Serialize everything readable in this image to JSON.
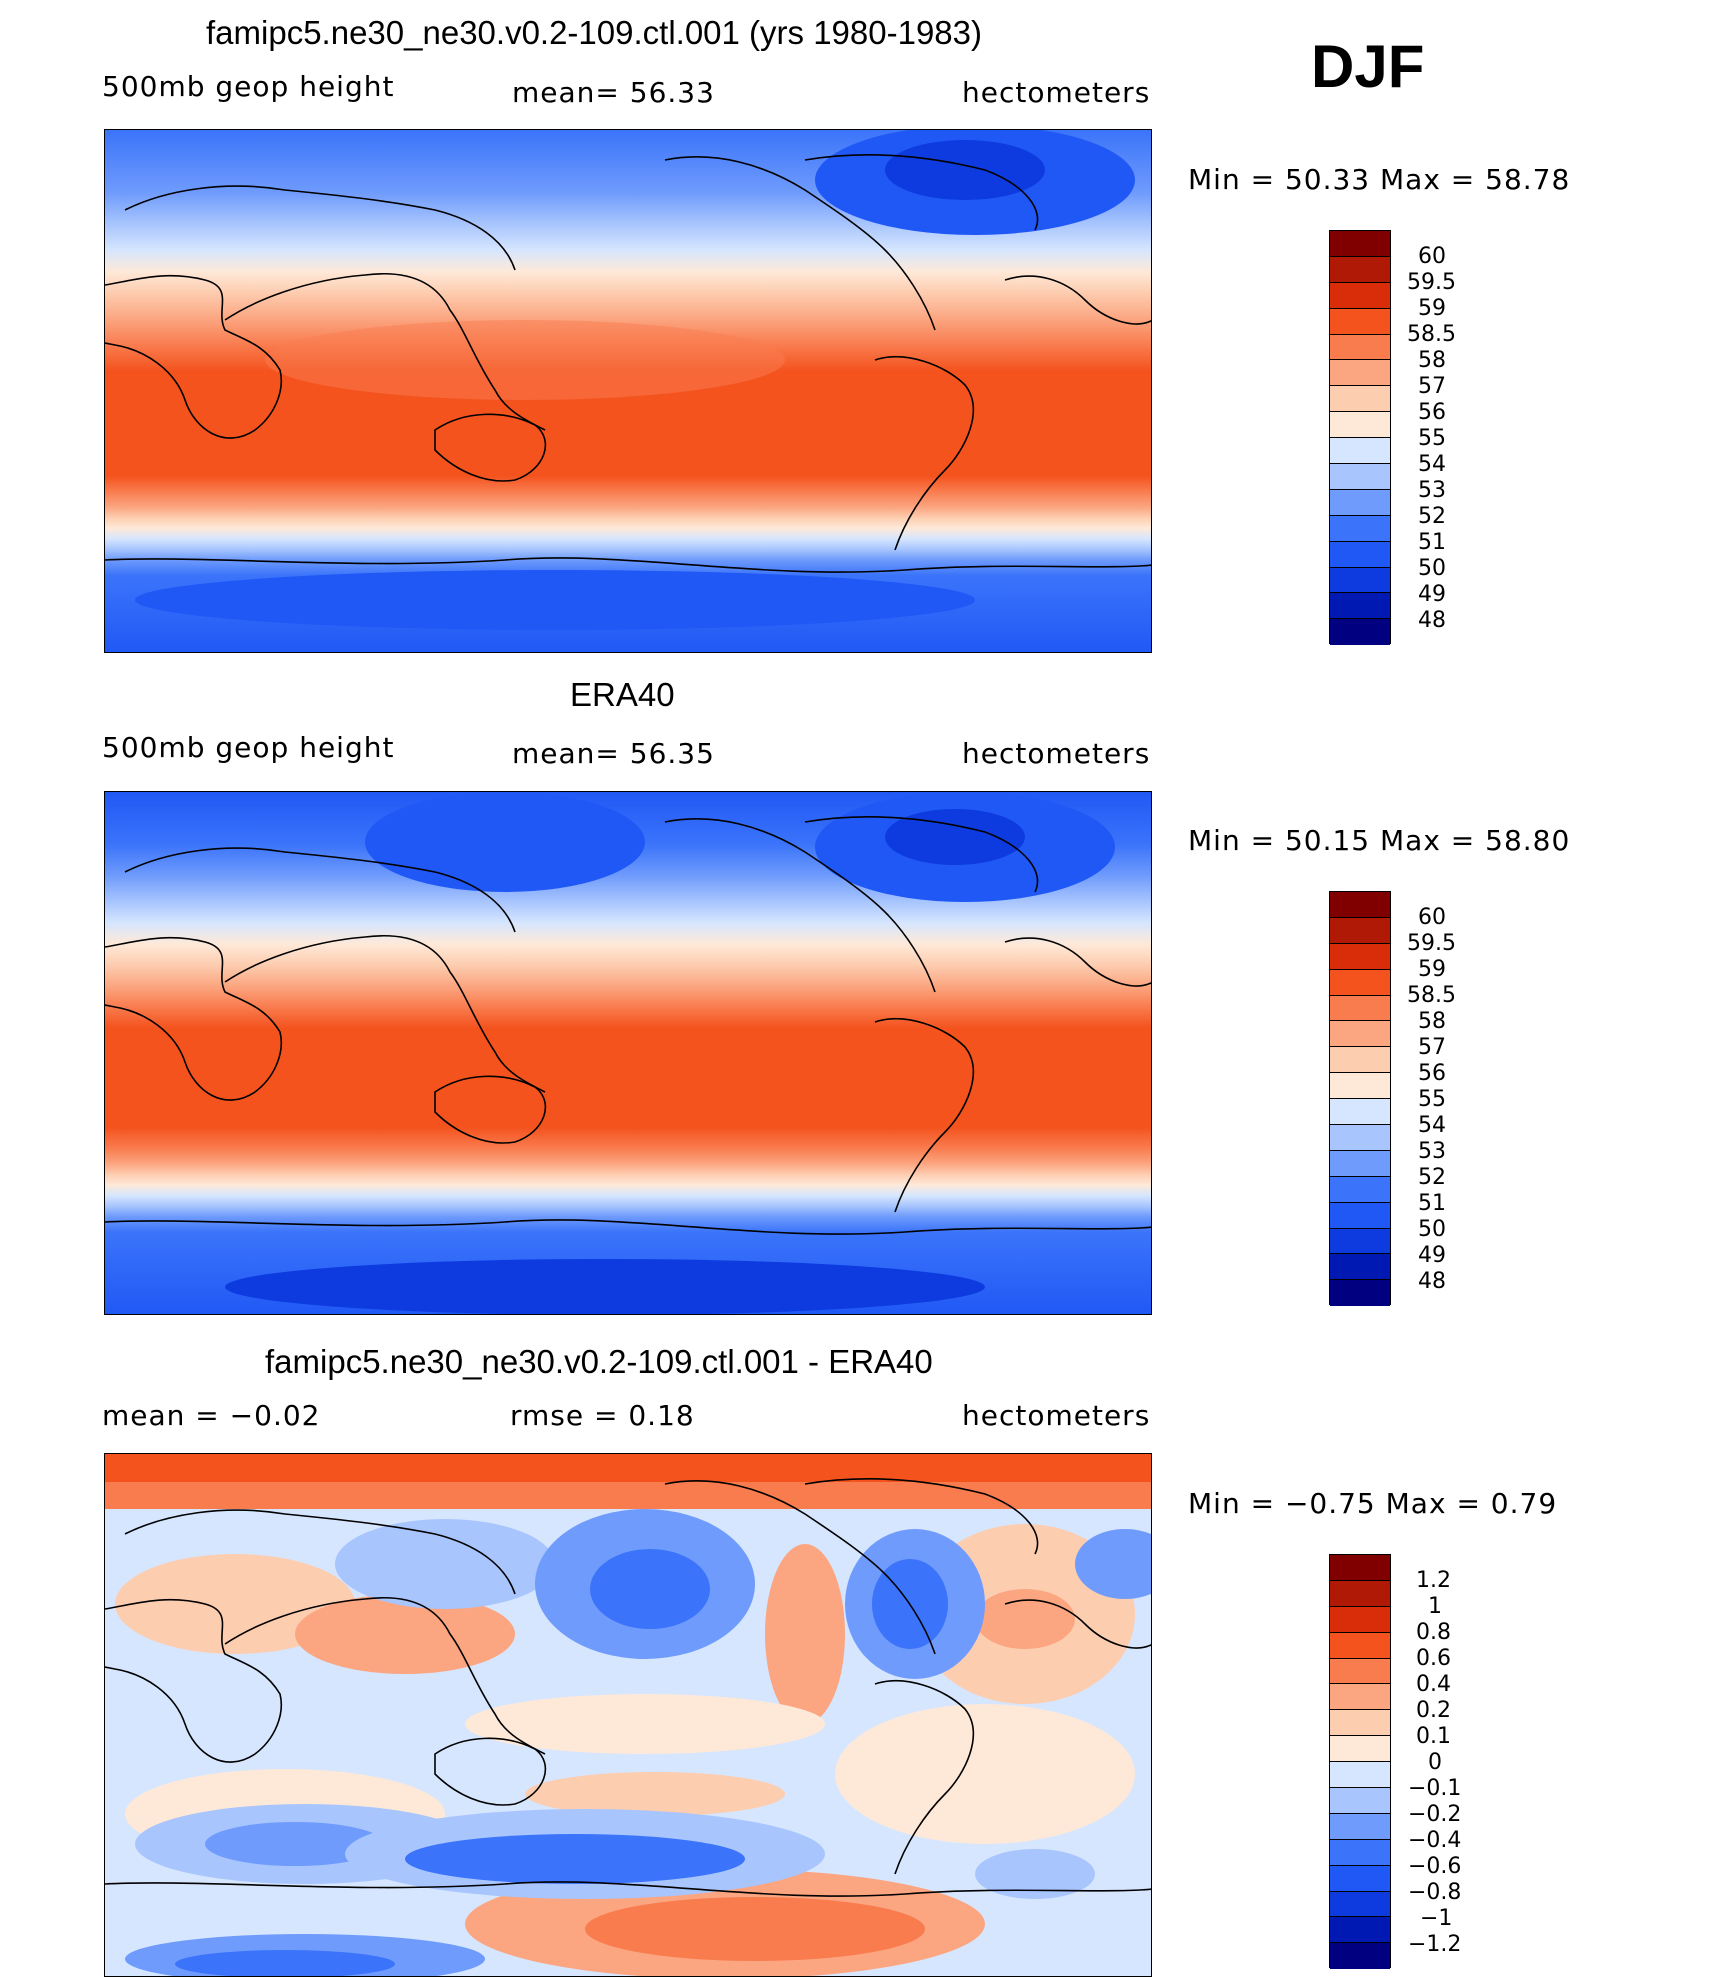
{
  "header": {
    "season": "DJF"
  },
  "colors": {
    "abs_scale": [
      "#000080",
      "#0019b3",
      "#0d3be0",
      "#2058f5",
      "#3b74fa",
      "#6f9bfc",
      "#a8c5fd",
      "#d6e6fe",
      "#fee9d9",
      "#fdcdb0",
      "#fba681",
      "#f97c4f",
      "#f4531e",
      "#d92d0a",
      "#b01905",
      "#800000"
    ],
    "diff_scale": [
      "#000080",
      "#0019b3",
      "#0d3be0",
      "#2058f5",
      "#3b74fa",
      "#6f9bfc",
      "#a8c5fd",
      "#d6e6fe",
      "#fee9d9",
      "#fdcdb0",
      "#fba681",
      "#f97c4f",
      "#f4531e",
      "#d92d0a",
      "#b01905",
      "#800000"
    ]
  },
  "panels": [
    {
      "title": "famipc5.ne30_ne30.v0.2-109.ctl.001 (yrs 1980-1983)",
      "left_label": "500mb  geop  height",
      "center_label": "mean=   56.33",
      "right_label": "hectometers",
      "minmax": "Min  =    50.33  Max  =    58.78",
      "legend_ticks": [
        "60",
        "59.5",
        "59",
        "58.5",
        "58",
        "57",
        "56",
        "55",
        "54",
        "53",
        "52",
        "51",
        "50",
        "49",
        "48"
      ]
    },
    {
      "title": "ERA40",
      "left_label": "500mb  geop  height",
      "center_label": "mean=   56.35",
      "right_label": "hectometers",
      "minmax": "Min  =    50.15  Max  =    58.80",
      "legend_ticks": [
        "60",
        "59.5",
        "59",
        "58.5",
        "58",
        "57",
        "56",
        "55",
        "54",
        "53",
        "52",
        "51",
        "50",
        "49",
        "48"
      ]
    },
    {
      "title": "famipc5.ne30_ne30.v0.2-109.ctl.001 - ERA40",
      "left_label": "mean  =    −0.02",
      "center_label": "rmse  =     0.18",
      "right_label": "hectometers",
      "minmax": "Min  =    −0.75  Max  =      0.79",
      "legend_ticks": [
        "1.2",
        "1",
        "0.8",
        "0.6",
        "0.4",
        "0.2",
        "0.1",
        "0",
        "−0.1",
        "−0.2",
        "−0.4",
        "−0.6",
        "−0.8",
        "−1",
        "−1.2"
      ]
    }
  ]
}
